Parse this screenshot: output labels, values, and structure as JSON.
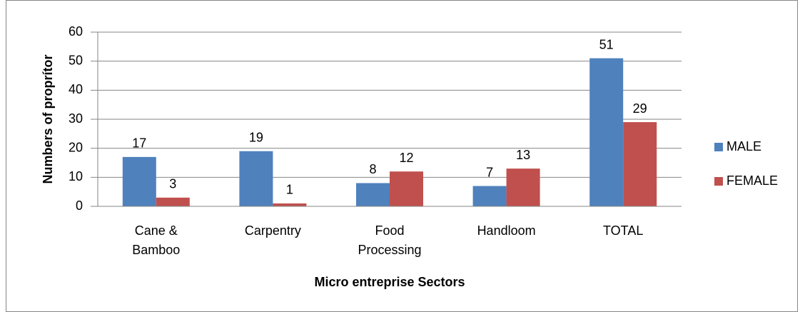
{
  "chart_data": {
    "type": "bar",
    "x_label": "Micro entreprise Sectors",
    "y_label": "Numbers of proprítor",
    "categories": [
      "Cane & Bamboo",
      "Carpentry",
      "Food Processing",
      "Handloom",
      "TOTAL"
    ],
    "series": [
      {
        "name": "MALE",
        "color": "#4f81bd",
        "values": [
          17,
          19,
          8,
          7,
          51
        ]
      },
      {
        "name": "FEMALE",
        "color": "#c0504d",
        "values": [
          3,
          1,
          12,
          13,
          29
        ]
      }
    ],
    "ylim": [
      0,
      60
    ],
    "yticks": [
      0,
      10,
      20,
      30,
      40,
      50,
      60
    ],
    "grid": true,
    "legend": "right"
  }
}
